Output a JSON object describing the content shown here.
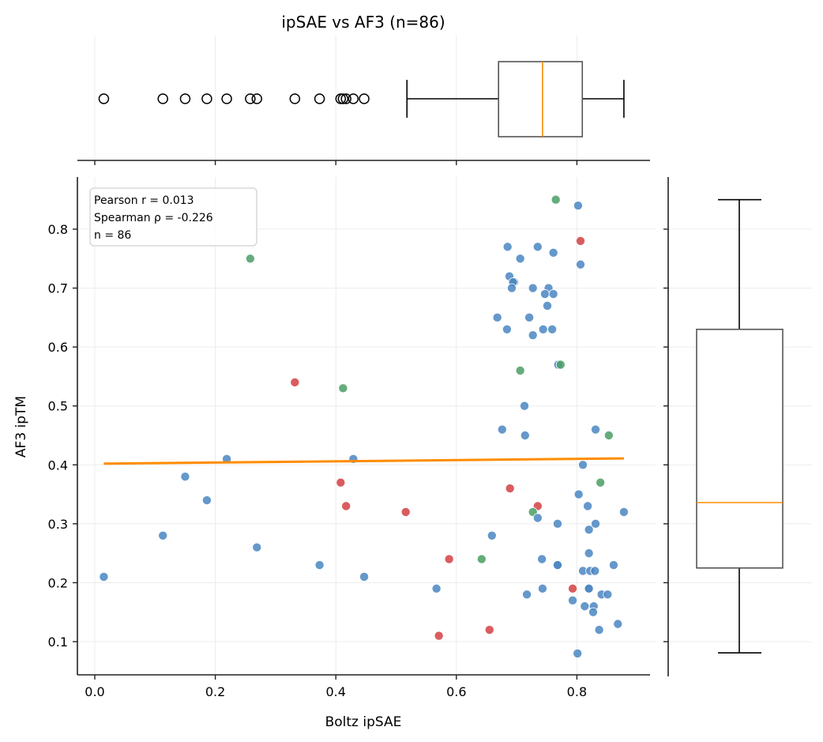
{
  "chart_data": {
    "type": "scatter",
    "title": "ipSAE vs AF3 (n=86)",
    "xlabel": "Boltz ipSAE",
    "ylabel": "AF3 ipTM",
    "xlim": [
      -0.028,
      0.92
    ],
    "ylim": [
      0.042,
      0.887
    ],
    "xticks": [
      0.0,
      0.2,
      0.4,
      0.6,
      0.8
    ],
    "xtick_labels": [
      "0.0",
      "0.2",
      "0.4",
      "0.6",
      "0.8"
    ],
    "yticks": [
      0.1,
      0.2,
      0.3,
      0.4,
      0.5,
      0.6,
      0.7,
      0.8
    ],
    "ytick_labels": [
      "0.1",
      "0.2",
      "0.3",
      "0.4",
      "0.5",
      "0.6",
      "0.7",
      "0.8"
    ],
    "grid": true,
    "stats_box": {
      "location": "top-left",
      "lines": [
        "Pearson r = 0.013",
        "Spearman ρ = -0.226",
        "n = 86"
      ]
    },
    "colors": {
      "blue": "#4a86c2",
      "red": "#d33f43",
      "green": "#4a9e65",
      "fit": "#ff8c00"
    },
    "regression": {
      "x": [
        0.015,
        0.878
      ],
      "y": [
        0.402,
        0.411
      ]
    },
    "points": [
      {
        "x": 0.765,
        "y": 0.85,
        "c": "green"
      },
      {
        "x": 0.802,
        "y": 0.84,
        "c": "blue"
      },
      {
        "x": 0.806,
        "y": 0.78,
        "c": "red"
      },
      {
        "x": 0.685,
        "y": 0.77,
        "c": "blue"
      },
      {
        "x": 0.735,
        "y": 0.77,
        "c": "blue"
      },
      {
        "x": 0.761,
        "y": 0.76,
        "c": "blue"
      },
      {
        "x": 0.706,
        "y": 0.75,
        "c": "blue"
      },
      {
        "x": 0.258,
        "y": 0.75,
        "c": "green"
      },
      {
        "x": 0.806,
        "y": 0.74,
        "c": "blue"
      },
      {
        "x": 0.688,
        "y": 0.72,
        "c": "blue"
      },
      {
        "x": 0.696,
        "y": 0.71,
        "c": "blue"
      },
      {
        "x": 0.694,
        "y": 0.71,
        "c": "blue"
      },
      {
        "x": 0.692,
        "y": 0.7,
        "c": "blue"
      },
      {
        "x": 0.727,
        "y": 0.7,
        "c": "blue"
      },
      {
        "x": 0.753,
        "y": 0.7,
        "c": "blue"
      },
      {
        "x": 0.747,
        "y": 0.69,
        "c": "blue"
      },
      {
        "x": 0.761,
        "y": 0.69,
        "c": "blue"
      },
      {
        "x": 0.751,
        "y": 0.67,
        "c": "blue"
      },
      {
        "x": 0.668,
        "y": 0.65,
        "c": "blue"
      },
      {
        "x": 0.721,
        "y": 0.65,
        "c": "blue"
      },
      {
        "x": 0.684,
        "y": 0.63,
        "c": "blue"
      },
      {
        "x": 0.744,
        "y": 0.63,
        "c": "blue"
      },
      {
        "x": 0.759,
        "y": 0.63,
        "c": "blue"
      },
      {
        "x": 0.727,
        "y": 0.62,
        "c": "blue"
      },
      {
        "x": 0.769,
        "y": 0.57,
        "c": "blue"
      },
      {
        "x": 0.773,
        "y": 0.57,
        "c": "green"
      },
      {
        "x": 0.706,
        "y": 0.56,
        "c": "green"
      },
      {
        "x": 0.332,
        "y": 0.54,
        "c": "red"
      },
      {
        "x": 0.412,
        "y": 0.53,
        "c": "green"
      },
      {
        "x": 0.713,
        "y": 0.5,
        "c": "blue"
      },
      {
        "x": 0.676,
        "y": 0.46,
        "c": "blue"
      },
      {
        "x": 0.831,
        "y": 0.46,
        "c": "blue"
      },
      {
        "x": 0.714,
        "y": 0.45,
        "c": "blue"
      },
      {
        "x": 0.853,
        "y": 0.45,
        "c": "green"
      },
      {
        "x": 0.219,
        "y": 0.41,
        "c": "blue"
      },
      {
        "x": 0.429,
        "y": 0.41,
        "c": "blue"
      },
      {
        "x": 0.81,
        "y": 0.4,
        "c": "blue"
      },
      {
        "x": 0.15,
        "y": 0.38,
        "c": "blue"
      },
      {
        "x": 0.839,
        "y": 0.37,
        "c": "green"
      },
      {
        "x": 0.408,
        "y": 0.37,
        "c": "red"
      },
      {
        "x": 0.689,
        "y": 0.36,
        "c": "red"
      },
      {
        "x": 0.803,
        "y": 0.35,
        "c": "blue"
      },
      {
        "x": 0.186,
        "y": 0.34,
        "c": "blue"
      },
      {
        "x": 0.417,
        "y": 0.33,
        "c": "red"
      },
      {
        "x": 0.735,
        "y": 0.33,
        "c": "red"
      },
      {
        "x": 0.818,
        "y": 0.33,
        "c": "blue"
      },
      {
        "x": 0.516,
        "y": 0.32,
        "c": "red"
      },
      {
        "x": 0.727,
        "y": 0.32,
        "c": "green"
      },
      {
        "x": 0.878,
        "y": 0.32,
        "c": "blue"
      },
      {
        "x": 0.735,
        "y": 0.31,
        "c": "blue"
      },
      {
        "x": 0.768,
        "y": 0.3,
        "c": "blue"
      },
      {
        "x": 0.831,
        "y": 0.3,
        "c": "blue"
      },
      {
        "x": 0.82,
        "y": 0.29,
        "c": "blue"
      },
      {
        "x": 0.113,
        "y": 0.28,
        "c": "blue"
      },
      {
        "x": 0.659,
        "y": 0.28,
        "c": "blue"
      },
      {
        "x": 0.269,
        "y": 0.26,
        "c": "blue"
      },
      {
        "x": 0.82,
        "y": 0.25,
        "c": "blue"
      },
      {
        "x": 0.588,
        "y": 0.24,
        "c": "red"
      },
      {
        "x": 0.642,
        "y": 0.24,
        "c": "green"
      },
      {
        "x": 0.742,
        "y": 0.24,
        "c": "blue"
      },
      {
        "x": 0.373,
        "y": 0.23,
        "c": "blue"
      },
      {
        "x": 0.768,
        "y": 0.23,
        "c": "blue"
      },
      {
        "x": 0.768,
        "y": 0.23,
        "c": "blue"
      },
      {
        "x": 0.861,
        "y": 0.23,
        "c": "blue"
      },
      {
        "x": 0.81,
        "y": 0.22,
        "c": "blue"
      },
      {
        "x": 0.822,
        "y": 0.22,
        "c": "blue"
      },
      {
        "x": 0.83,
        "y": 0.22,
        "c": "blue"
      },
      {
        "x": 0.015,
        "y": 0.21,
        "c": "blue"
      },
      {
        "x": 0.447,
        "y": 0.21,
        "c": "blue"
      },
      {
        "x": 0.567,
        "y": 0.19,
        "c": "blue"
      },
      {
        "x": 0.743,
        "y": 0.19,
        "c": "blue"
      },
      {
        "x": 0.793,
        "y": 0.19,
        "c": "red"
      },
      {
        "x": 0.819,
        "y": 0.19,
        "c": "blue"
      },
      {
        "x": 0.82,
        "y": 0.19,
        "c": "blue"
      },
      {
        "x": 0.717,
        "y": 0.18,
        "c": "blue"
      },
      {
        "x": 0.841,
        "y": 0.18,
        "c": "blue"
      },
      {
        "x": 0.851,
        "y": 0.18,
        "c": "blue"
      },
      {
        "x": 0.793,
        "y": 0.17,
        "c": "blue"
      },
      {
        "x": 0.813,
        "y": 0.16,
        "c": "blue"
      },
      {
        "x": 0.828,
        "y": 0.16,
        "c": "blue"
      },
      {
        "x": 0.827,
        "y": 0.15,
        "c": "blue"
      },
      {
        "x": 0.868,
        "y": 0.13,
        "c": "blue"
      },
      {
        "x": 0.655,
        "y": 0.12,
        "c": "red"
      },
      {
        "x": 0.837,
        "y": 0.12,
        "c": "blue"
      },
      {
        "x": 0.571,
        "y": 0.11,
        "c": "red"
      },
      {
        "x": 0.801,
        "y": 0.08,
        "c": "blue"
      }
    ],
    "top_boxplot": {
      "variable": "Boltz ipSAE",
      "whisker_low": 0.518,
      "q1": 0.67,
      "median": 0.743,
      "q3": 0.809,
      "whisker_high": 0.878,
      "outliers": [
        0.015,
        0.113,
        0.15,
        0.186,
        0.219,
        0.258,
        0.269,
        0.332,
        0.373,
        0.408,
        0.412,
        0.417,
        0.429,
        0.447
      ]
    },
    "right_boxplot": {
      "variable": "AF3 ipTM",
      "whisker_low": 0.081,
      "q1": 0.225,
      "median": 0.336,
      "q3": 0.63,
      "whisker_high": 0.85,
      "outliers": []
    }
  }
}
